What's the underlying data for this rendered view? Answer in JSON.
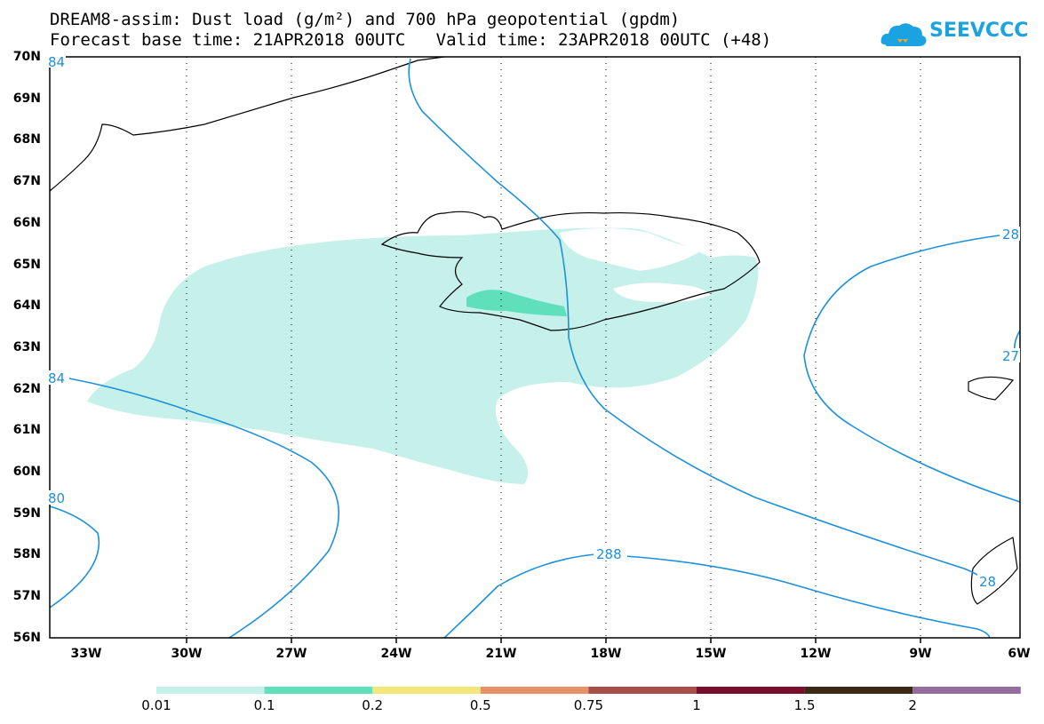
{
  "header": {
    "line1": "DREAM8-assim: Dust load (g/m²) and 700 hPa geopotential (gpdm)",
    "line2": "Forecast base time: 21APR2018 00UTC   Valid time: 23APR2018 00UTC (+48)",
    "logo_text": "SEEVCCC"
  },
  "map": {
    "lat_labels": [
      "70N",
      "69N",
      "68N",
      "67N",
      "66N",
      "65N",
      "64N",
      "63N",
      "62N",
      "61N",
      "60N",
      "59N",
      "58N",
      "57N",
      "56N"
    ],
    "lon_labels": [
      "33W",
      "30W",
      "27W",
      "24W",
      "21W",
      "18W",
      "15W",
      "12W",
      "9W",
      "6W"
    ],
    "contour_labels": [
      "84",
      "84",
      "80",
      "288",
      "28",
      "27",
      "28"
    ]
  },
  "colorbar": {
    "labels": [
      "0.01",
      "0.1",
      "0.2",
      "0.5",
      "0.75",
      "1",
      "1.5",
      "2"
    ],
    "colors": [
      "#c6f0ea",
      "#5fe0ba",
      "#f5e67a",
      "#e89068",
      "#a84e48",
      "#7a0c2c",
      "#3e2a14",
      "#946c9e"
    ]
  },
  "colors": {
    "contour": "#1e90dc",
    "dust_low": "#c6f0ea",
    "dust_mid": "#5fe0ba"
  }
}
